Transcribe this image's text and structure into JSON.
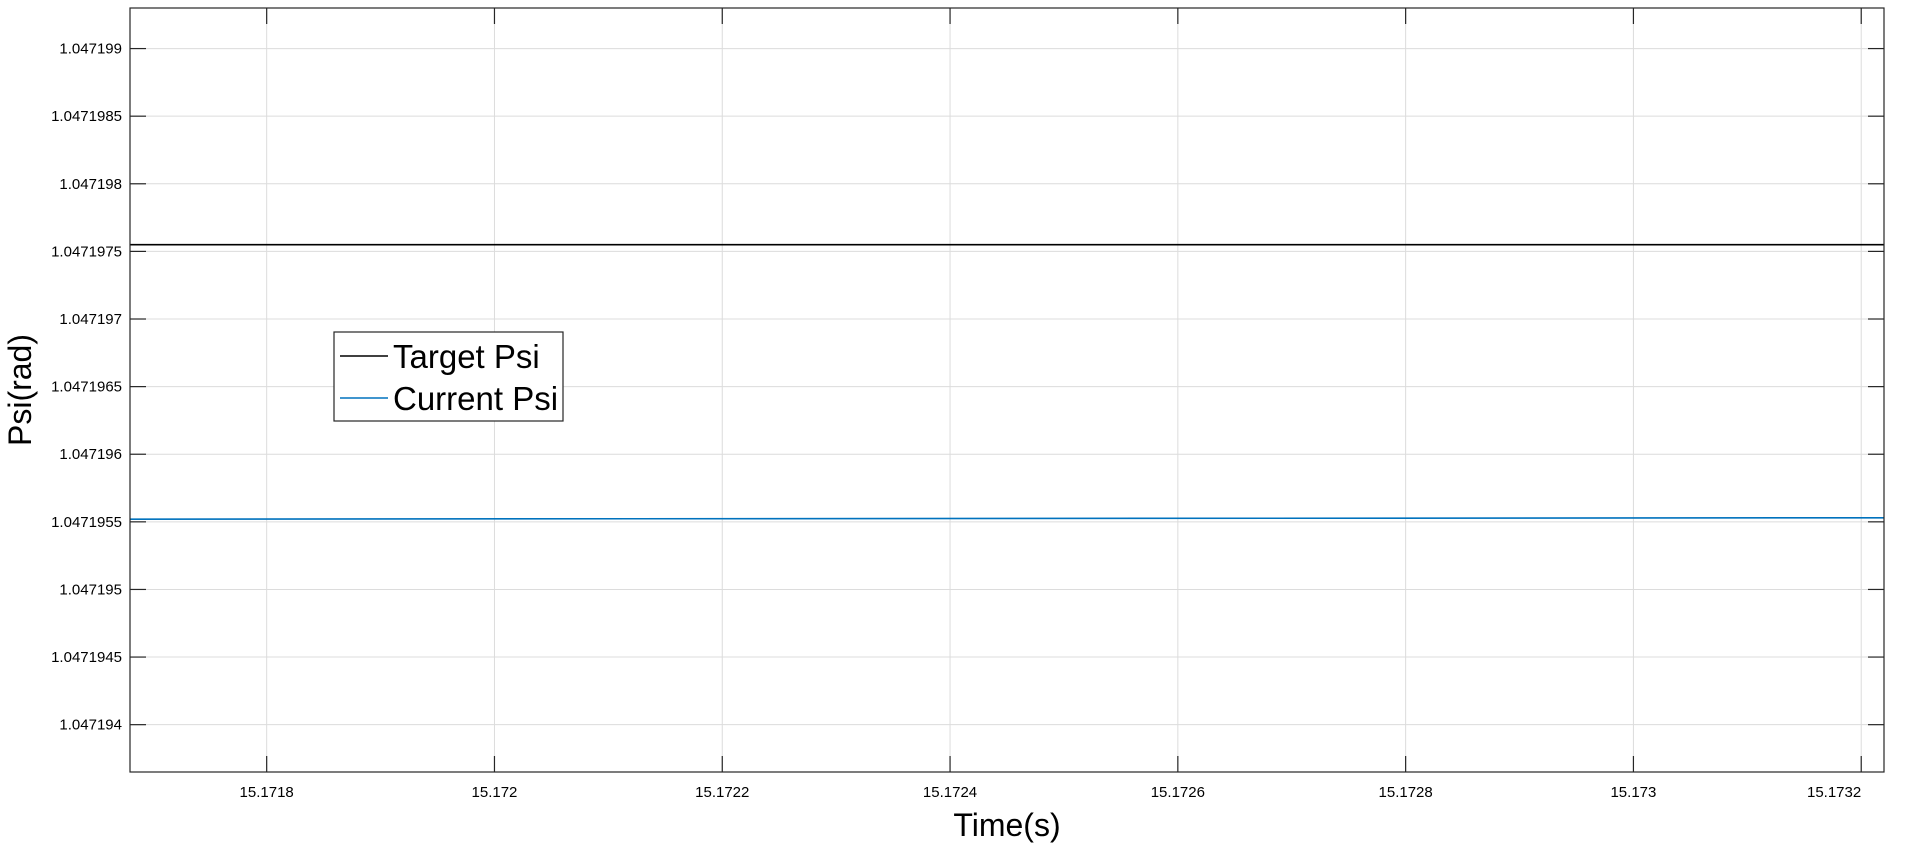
{
  "chart_data": {
    "type": "line",
    "xlabel": "Time(s)",
    "ylabel": "Psi(rad)",
    "xlim": [
      15.17168,
      15.17322
    ],
    "ylim": [
      1.04719365,
      1.0471993
    ],
    "x_ticks": [
      15.1718,
      15.172,
      15.1722,
      15.1724,
      15.1726,
      15.1728,
      15.173,
      15.1732
    ],
    "x_tick_labels": [
      "15.1718",
      "15.172",
      "15.1722",
      "15.1724",
      "15.1726",
      "15.1728",
      "15.173",
      "15.1732"
    ],
    "y_ticks": [
      1.047194,
      1.0471945,
      1.047195,
      1.0471955,
      1.047196,
      1.0471965,
      1.047197,
      1.0471975,
      1.047198,
      1.0471985,
      1.047199
    ],
    "y_tick_labels": [
      "1.047194",
      "1.0471945",
      "1.047195",
      "1.0471955",
      "1.047196",
      "1.0471965",
      "1.047197",
      "1.0471975",
      "1.047198",
      "1.0471985",
      "1.047199"
    ],
    "grid": true,
    "legend_position": "center-left",
    "series": [
      {
        "name": "Target Psi",
        "color": "#000000",
        "x": [
          15.17168,
          15.17322
        ],
        "y": [
          1.04719755,
          1.04719755
        ]
      },
      {
        "name": "Current Psi",
        "color": "#0072BD",
        "x": [
          15.17168,
          15.17322
        ],
        "y": [
          1.04719552,
          1.04719553
        ]
      }
    ]
  }
}
